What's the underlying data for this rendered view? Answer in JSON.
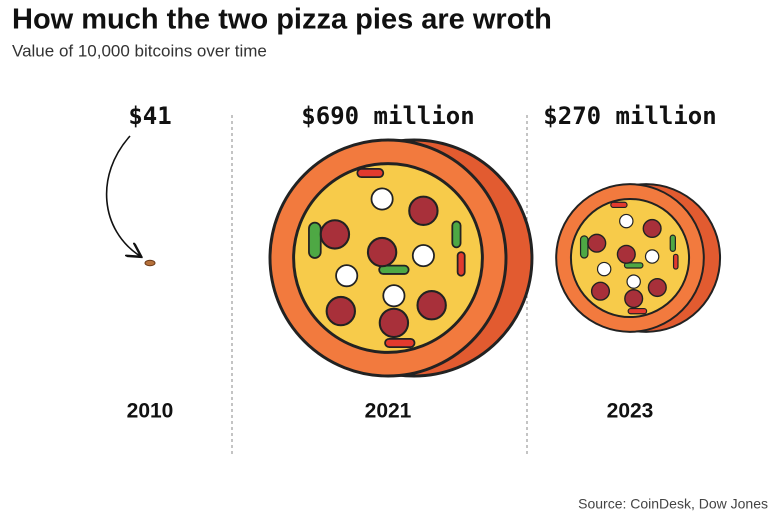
{
  "chart_data": {
    "type": "pictorial",
    "title": "How much the two pizza pies are wroth",
    "subtitle": "Value of 10,000 bitcoins over time",
    "categories": [
      "2010",
      "2021",
      "2023"
    ],
    "values": [
      41,
      690000000,
      270000000
    ],
    "value_labels": [
      "$41",
      "$690 million",
      "$270 million"
    ],
    "source": "Source: CoinDesk, Dow Jones"
  }
}
